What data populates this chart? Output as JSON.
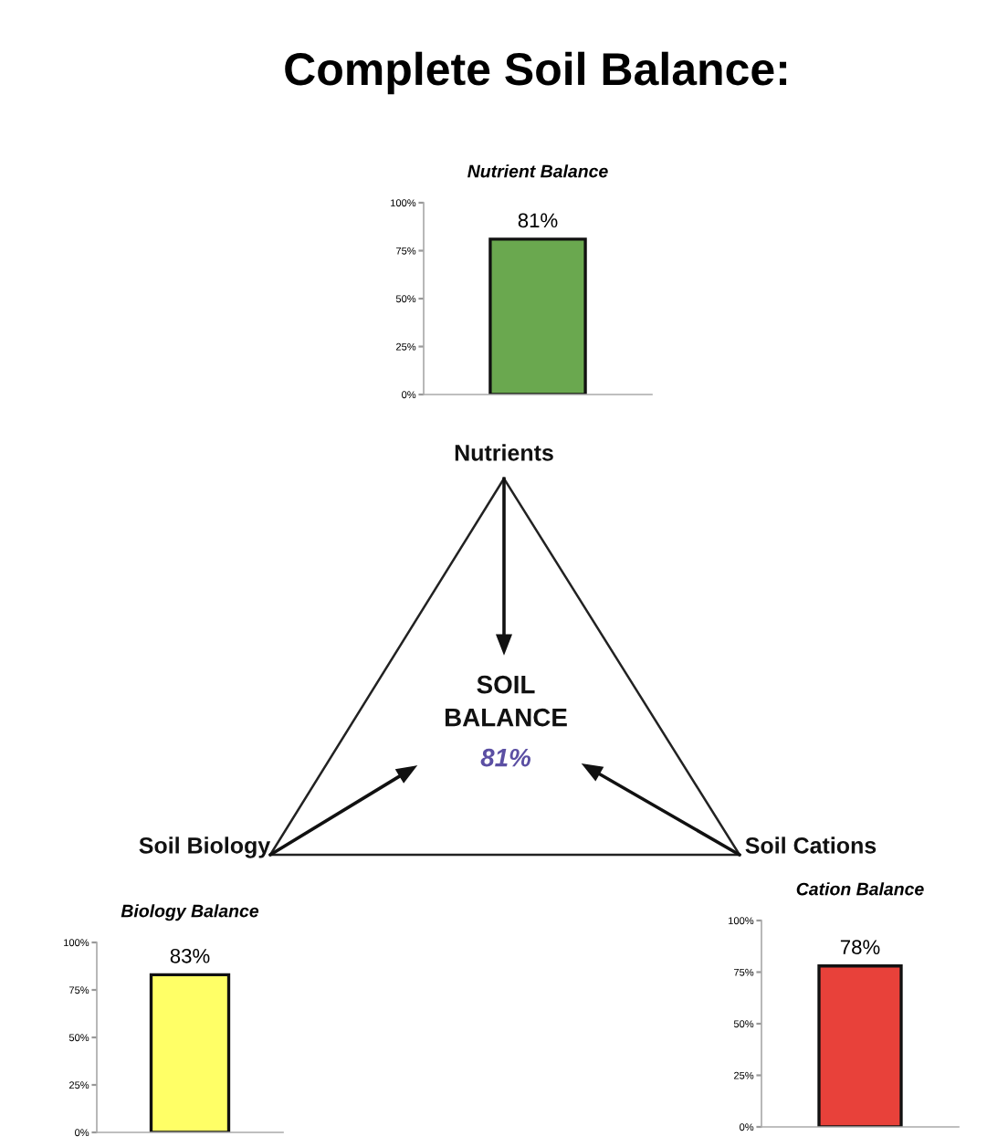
{
  "chart_data": [
    {
      "type": "other",
      "title": "Complete Soil Balance:",
      "annotations": [
        "Nutrients",
        "SOIL",
        "BALANCE",
        "81%",
        "Soil Biology",
        "Soil Cations"
      ]
    },
    {
      "type": "bar",
      "title": "Nutrient Balance",
      "categories": [
        null
      ],
      "values": [
        81
      ],
      "value_labels": [
        "81%"
      ],
      "color": "#6aa84f",
      "ylim": [
        0,
        100
      ],
      "yticks": [
        {
          "value": 0,
          "label": "0%"
        },
        {
          "value": 25,
          "label": "25%"
        },
        {
          "value": 50,
          "label": "50%"
        },
        {
          "value": 75,
          "label": "75%"
        },
        {
          "value": 100,
          "label": "100%"
        }
      ]
    },
    {
      "type": "bar",
      "title": "Biology Balance",
      "categories": [
        null
      ],
      "values": [
        83
      ],
      "value_labels": [
        "83%"
      ],
      "color": "#ffff66",
      "ylim": [
        0,
        100
      ],
      "yticks": [
        {
          "value": 0,
          "label": "0%"
        },
        {
          "value": 25,
          "label": "25%"
        },
        {
          "value": 50,
          "label": "50%"
        },
        {
          "value": 75,
          "label": "75%"
        },
        {
          "value": 100,
          "label": "100%"
        }
      ]
    },
    {
      "type": "bar",
      "title": "Cation Balance",
      "categories": [
        null
      ],
      "values": [
        78
      ],
      "value_labels": [
        "78%"
      ],
      "color": "#e8413a",
      "ylim": [
        0,
        100
      ],
      "yticks": [
        {
          "value": 0,
          "label": "0%"
        },
        {
          "value": 25,
          "label": "25%"
        },
        {
          "value": 50,
          "label": "50%"
        },
        {
          "value": 75,
          "label": "75%"
        },
        {
          "value": 100,
          "label": "100%"
        }
      ]
    }
  ]
}
